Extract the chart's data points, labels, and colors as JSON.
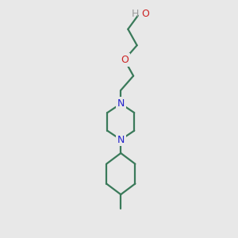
{
  "background_color": "#e8e8e8",
  "bond_color": "#3a7a5a",
  "nitrogen_color": "#2222cc",
  "oxygen_color": "#cc2222",
  "hydrogen_color": "#999999",
  "line_width": 1.6,
  "fig_size": [
    3.0,
    3.0
  ],
  "dpi": 100,
  "xlim": [
    2.5,
    7.5
  ],
  "ylim": [
    0.5,
    13.5
  ],
  "ho_x": 6.2,
  "ho_y": 12.8,
  "c1_x": 5.5,
  "c1_y": 12.0,
  "c2_x": 6.0,
  "c2_y": 11.1,
  "o_x": 5.3,
  "o_y": 10.3,
  "c3_x": 5.8,
  "c3_y": 9.4,
  "c4_x": 5.1,
  "c4_y": 8.6,
  "n1_x": 5.1,
  "n1_y": 7.85,
  "pr_t_x": 5.85,
  "pr_t_y": 7.35,
  "pr_b_x": 5.85,
  "pr_b_y": 6.35,
  "n2_x": 5.1,
  "n2_y": 5.85,
  "pl_b_x": 4.35,
  "pl_b_y": 6.35,
  "pl_t_x": 4.35,
  "pl_t_y": 7.35,
  "cy_t_x": 5.1,
  "cy_t_y": 5.1,
  "cy_tr_x": 5.9,
  "cy_tr_y": 4.5,
  "cy_br_x": 5.9,
  "cy_br_y": 3.4,
  "cy_b_x": 5.1,
  "cy_b_y": 2.8,
  "cy_bl_x": 4.3,
  "cy_bl_y": 3.4,
  "cy_tl_x": 4.3,
  "cy_tl_y": 4.5,
  "me_x": 5.1,
  "me_y": 2.0,
  "font_size_atom": 9,
  "font_size_ho": 9
}
